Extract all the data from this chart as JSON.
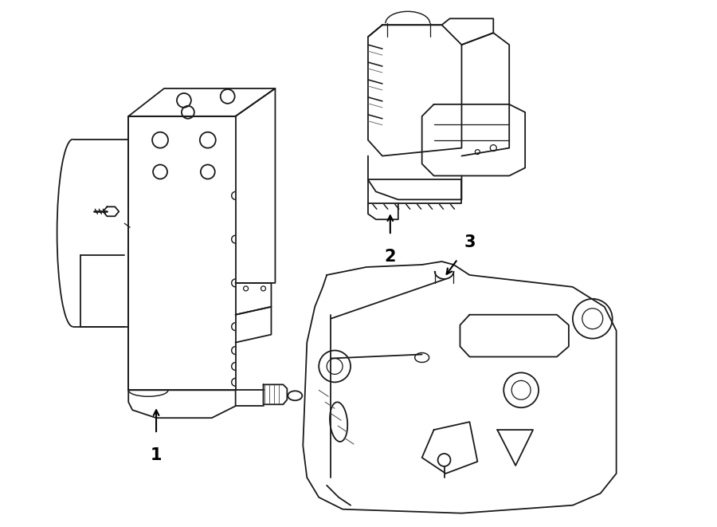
{
  "background_color": "#ffffff",
  "line_color": "#1a1a1a",
  "line_width": 1.3,
  "figsize": [
    9.0,
    6.61
  ],
  "dpi": 100
}
